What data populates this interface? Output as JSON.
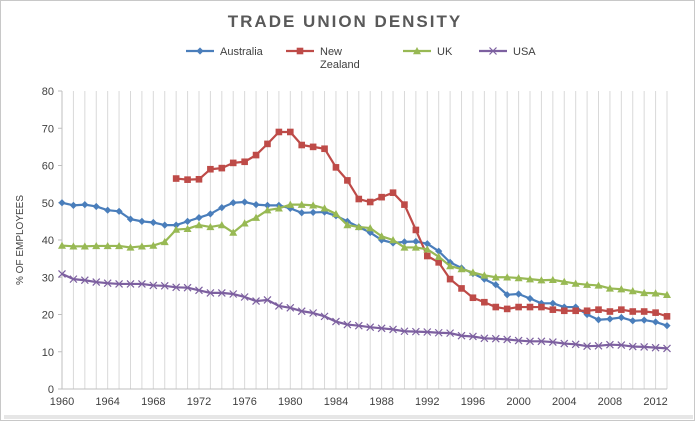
{
  "chart_data": {
    "type": "line",
    "title": "TRADE UNION DENSITY",
    "xlabel": "",
    "ylabel": "% OF EMPLOYEES",
    "ylim": [
      0,
      80
    ],
    "yticks": [
      0,
      10,
      20,
      30,
      40,
      50,
      60,
      70,
      80
    ],
    "xlim": [
      1960,
      2013
    ],
    "xticks": [
      1960,
      1964,
      1968,
      1972,
      1976,
      1980,
      1984,
      1988,
      1992,
      1996,
      2000,
      2004,
      2008,
      2012
    ],
    "grid": "vertical",
    "legend_position": "top",
    "series": [
      {
        "name": "Australia",
        "label_lines": [
          "Australia"
        ],
        "color": "#4a7ebb",
        "marker": "diamond",
        "x": [
          1960,
          1961,
          1962,
          1963,
          1964,
          1965,
          1966,
          1967,
          1968,
          1969,
          1970,
          1971,
          1972,
          1973,
          1974,
          1975,
          1976,
          1977,
          1978,
          1979,
          1980,
          1981,
          1982,
          1983,
          1984,
          1985,
          1986,
          1987,
          1988,
          1989,
          1990,
          1991,
          1992,
          1993,
          1994,
          1995,
          1996,
          1997,
          1998,
          1999,
          2000,
          2001,
          2002,
          2003,
          2004,
          2005,
          2006,
          2007,
          2008,
          2009,
          2010,
          2011,
          2012,
          2013
        ],
        "values": [
          50,
          49.3,
          49.5,
          49,
          48,
          47.7,
          45.6,
          45,
          44.7,
          44,
          44,
          45,
          46,
          47,
          48.7,
          50,
          50.2,
          49.5,
          49.3,
          49.3,
          48.5,
          47.3,
          47.4,
          47.5,
          46.5,
          45,
          43.5,
          42,
          40,
          39.2,
          39.5,
          39.6,
          39,
          37,
          34,
          32.5,
          31,
          29.5,
          28,
          25.3,
          25.5,
          24.3,
          23,
          23,
          22,
          22,
          20,
          18.6,
          18.8,
          19.2,
          18.3,
          18.5,
          18,
          17
        ]
      },
      {
        "name": "New Zealand",
        "label_lines": [
          "New",
          "Zealand"
        ],
        "color": "#be4b48",
        "marker": "square",
        "x": [
          1970,
          1971,
          1972,
          1973,
          1974,
          1975,
          1976,
          1977,
          1978,
          1979,
          1980,
          1981,
          1982,
          1983,
          1984,
          1985,
          1986,
          1987,
          1988,
          1989,
          1990,
          1991,
          1992,
          1993,
          1994,
          1995,
          1996,
          1997,
          1998,
          1999,
          2000,
          2001,
          2002,
          2003,
          2004,
          2005,
          2006,
          2007,
          2008,
          2009,
          2010,
          2011,
          2012,
          2013
        ],
        "values": [
          56.5,
          56.2,
          56.3,
          59,
          59.3,
          60.7,
          61,
          62.8,
          65.8,
          69,
          69,
          65.5,
          65,
          64.5,
          59.5,
          56,
          51,
          50.2,
          51.5,
          52.7,
          49.5,
          42.7,
          35.7,
          34,
          29.5,
          27,
          24.5,
          23.3,
          22,
          21.5,
          22,
          22,
          22,
          21.3,
          21,
          21,
          21,
          21.3,
          20.8,
          21.3,
          20.8,
          20.8,
          20.5,
          19.5
        ]
      },
      {
        "name": "UK",
        "label_lines": [
          "UK"
        ],
        "color": "#98b954",
        "marker": "triangle",
        "x": [
          1960,
          1961,
          1962,
          1963,
          1964,
          1965,
          1966,
          1967,
          1968,
          1969,
          1970,
          1971,
          1972,
          1973,
          1974,
          1975,
          1976,
          1977,
          1978,
          1979,
          1980,
          1981,
          1982,
          1983,
          1984,
          1985,
          1986,
          1987,
          1988,
          1989,
          1990,
          1991,
          1992,
          1993,
          1994,
          1995,
          1996,
          1997,
          1998,
          1999,
          2000,
          2001,
          2002,
          2003,
          2004,
          2005,
          2006,
          2007,
          2008,
          2009,
          2010,
          2011,
          2012,
          2013
        ],
        "values": [
          38.5,
          38.3,
          38.3,
          38.4,
          38.4,
          38.4,
          38,
          38.3,
          38.5,
          39.5,
          42.8,
          43,
          44,
          43.5,
          44,
          42,
          44.5,
          46,
          48,
          48.5,
          49.5,
          49.5,
          49.3,
          48.5,
          47,
          44,
          43.5,
          43.2,
          41,
          40,
          38,
          38,
          37.5,
          35.5,
          33,
          32.2,
          31.3,
          30.5,
          30,
          30,
          29.8,
          29.5,
          29.2,
          29.3,
          28.8,
          28.3,
          28,
          27.8,
          27,
          26.8,
          26.3,
          25.8,
          25.7,
          25.3
        ]
      },
      {
        "name": "USA",
        "label_lines": [
          "USA"
        ],
        "color": "#7d60a0",
        "marker": "x",
        "x": [
          1960,
          1961,
          1962,
          1963,
          1964,
          1965,
          1966,
          1967,
          1968,
          1969,
          1970,
          1971,
          1972,
          1973,
          1974,
          1975,
          1976,
          1977,
          1978,
          1979,
          1980,
          1981,
          1982,
          1983,
          1984,
          1985,
          1986,
          1987,
          1988,
          1989,
          1990,
          1991,
          1992,
          1993,
          1994,
          1995,
          1996,
          1997,
          1998,
          1999,
          2000,
          2001,
          2002,
          2003,
          2004,
          2005,
          2006,
          2007,
          2008,
          2009,
          2010,
          2011,
          2012,
          2013
        ],
        "values": [
          30.9,
          29.5,
          29.2,
          28.7,
          28.4,
          28.2,
          28.2,
          28.2,
          27.8,
          27.7,
          27.3,
          27.2,
          26.5,
          25.8,
          25.8,
          25.5,
          24.7,
          23.6,
          23.9,
          22.3,
          21.8,
          20.9,
          20.4,
          19.5,
          18.1,
          17.3,
          17,
          16.6,
          16.3,
          16,
          15.5,
          15.4,
          15.3,
          15.1,
          15,
          14.3,
          14.1,
          13.6,
          13.5,
          13.3,
          13,
          12.8,
          12.8,
          12.6,
          12.2,
          12,
          11.5,
          11.6,
          11.9,
          11.8,
          11.4,
          11.3,
          11.1,
          10.9
        ]
      }
    ]
  }
}
